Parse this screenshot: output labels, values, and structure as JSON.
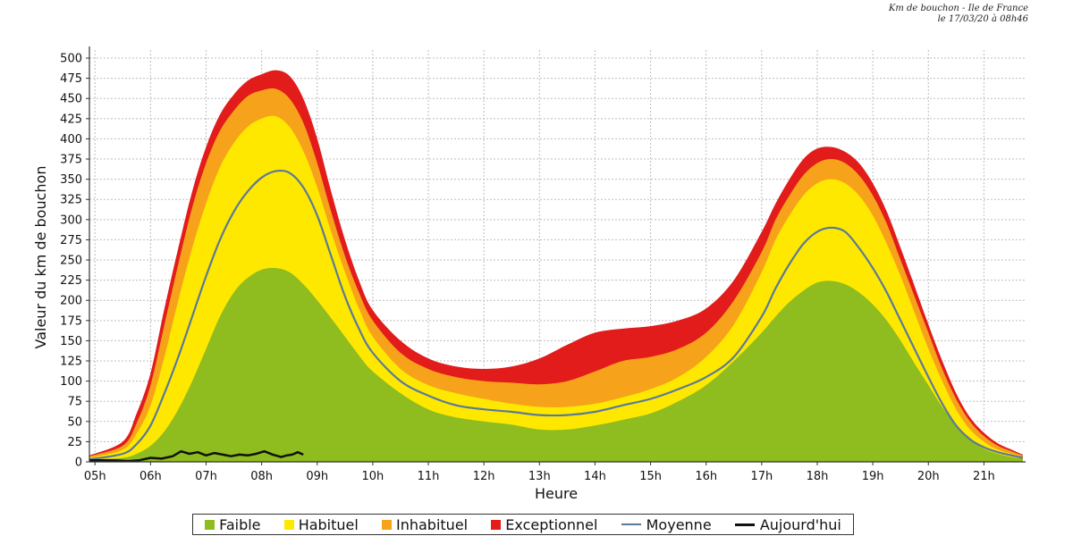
{
  "header": {
    "line1": "Km de bouchon - Ile de France",
    "line2": "le 17/03/20 à 08h46"
  },
  "chart_data": {
    "type": "area",
    "xlabel": "Heure",
    "ylabel": "Valeur du  km de bouchon",
    "xlim": [
      4.9,
      21.75
    ],
    "ylim": [
      0,
      510
    ],
    "x_ticks": [
      5,
      6,
      7,
      8,
      9,
      10,
      11,
      12,
      13,
      14,
      15,
      16,
      17,
      18,
      19,
      20,
      21
    ],
    "x_tick_labels": [
      "05h",
      "06h",
      "07h",
      "08h",
      "09h",
      "10h",
      "11h",
      "12h",
      "13h",
      "14h",
      "15h",
      "16h",
      "17h",
      "18h",
      "19h",
      "20h",
      "21h"
    ],
    "y_ticks": [
      0,
      25,
      50,
      75,
      100,
      125,
      150,
      175,
      200,
      225,
      250,
      275,
      300,
      325,
      350,
      375,
      400,
      425,
      450,
      475,
      500
    ],
    "grid": true,
    "legend_position": "bottom",
    "x": [
      4.9,
      5.5,
      5.75,
      6.0,
      6.25,
      6.5,
      6.75,
      7.0,
      7.25,
      7.5,
      7.75,
      8.0,
      8.25,
      8.5,
      8.75,
      9.0,
      9.25,
      9.5,
      9.75,
      10.0,
      10.5,
      11.0,
      11.5,
      12.0,
      12.5,
      13.0,
      13.5,
      14.0,
      14.5,
      15.0,
      15.5,
      16.0,
      16.5,
      17.0,
      17.25,
      17.5,
      17.75,
      18.0,
      18.25,
      18.5,
      18.75,
      19.0,
      19.25,
      19.5,
      19.75,
      20.0,
      20.25,
      20.5,
      20.75,
      21.0,
      21.25,
      21.5,
      21.7
    ],
    "series": [
      {
        "name": "Faible",
        "color": "#8fbc1e",
        "values": [
          3,
          5,
          10,
          20,
          38,
          65,
          100,
          140,
          180,
          210,
          228,
          238,
          240,
          235,
          220,
          200,
          178,
          155,
          132,
          112,
          85,
          65,
          55,
          50,
          46,
          40,
          40,
          45,
          52,
          60,
          75,
          95,
          125,
          160,
          180,
          198,
          212,
          222,
          224,
          220,
          210,
          195,
          175,
          150,
          122,
          95,
          68,
          45,
          28,
          16,
          10,
          6,
          4
        ]
      },
      {
        "name": "Habituel",
        "color": "#ffe800",
        "values": [
          5,
          15,
          35,
          70,
          130,
          200,
          265,
          320,
          365,
          395,
          415,
          425,
          428,
          415,
          385,
          340,
          285,
          235,
          190,
          155,
          115,
          95,
          85,
          78,
          72,
          68,
          68,
          72,
          80,
          90,
          105,
          130,
          170,
          235,
          275,
          305,
          330,
          345,
          350,
          345,
          330,
          305,
          270,
          230,
          185,
          140,
          100,
          65,
          40,
          25,
          15,
          10,
          6
        ]
      },
      {
        "name": "Inhabituel",
        "color": "#f7a21b",
        "values": [
          7,
          20,
          48,
          95,
          170,
          245,
          315,
          370,
          410,
          435,
          453,
          460,
          462,
          450,
          420,
          370,
          310,
          255,
          210,
          175,
          135,
          115,
          105,
          100,
          98,
          96,
          100,
          112,
          125,
          130,
          140,
          160,
          200,
          260,
          300,
          330,
          355,
          370,
          375,
          370,
          355,
          330,
          295,
          250,
          205,
          160,
          115,
          78,
          50,
          32,
          20,
          13,
          8
        ]
      },
      {
        "name": "Exceptionnel",
        "color": "#e21b1b",
        "values": [
          8,
          25,
          60,
          110,
          190,
          265,
          335,
          390,
          430,
          455,
          472,
          480,
          485,
          478,
          450,
          400,
          335,
          275,
          225,
          188,
          150,
          128,
          118,
          115,
          118,
          128,
          145,
          160,
          165,
          168,
          175,
          190,
          225,
          285,
          320,
          350,
          375,
          388,
          390,
          384,
          370,
          345,
          310,
          265,
          218,
          170,
          125,
          85,
          55,
          36,
          23,
          15,
          9
        ]
      },
      {
        "name": "Moyenne",
        "color": "#5a7a99",
        "values": [
          3,
          10,
          22,
          45,
          85,
          130,
          180,
          230,
          275,
          310,
          335,
          352,
          360,
          358,
          340,
          305,
          255,
          205,
          165,
          135,
          100,
          82,
          70,
          65,
          62,
          58,
          58,
          62,
          70,
          78,
          90,
          105,
          130,
          180,
          215,
          245,
          270,
          285,
          290,
          285,
          265,
          240,
          210,
          175,
          140,
          105,
          72,
          45,
          28,
          18,
          12,
          8,
          5
        ]
      },
      {
        "name": "Aujourd'hui",
        "color": "#111111",
        "x": [
          4.9,
          5.3,
          5.6,
          5.8,
          6.0,
          6.2,
          6.4,
          6.55,
          6.7,
          6.85,
          7.0,
          7.15,
          7.3,
          7.45,
          7.6,
          7.75,
          7.9,
          8.05,
          8.2,
          8.35,
          8.45,
          8.55,
          8.65,
          8.75
        ],
        "values": [
          2,
          2,
          1,
          2,
          5,
          4,
          7,
          13,
          10,
          12,
          8,
          11,
          9,
          7,
          9,
          8,
          10,
          13,
          9,
          6,
          8,
          9,
          12,
          9
        ]
      }
    ]
  }
}
